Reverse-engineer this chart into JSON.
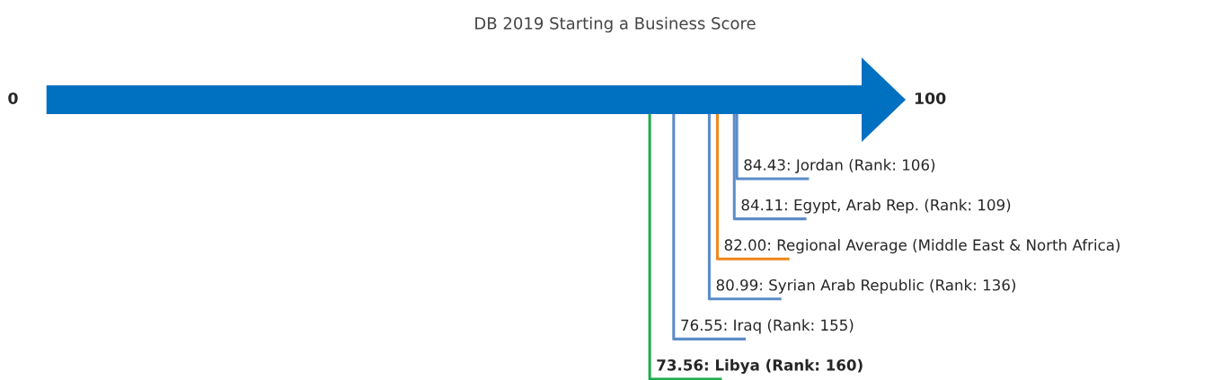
{
  "chart_data": {
    "type": "other",
    "title": "DB 2019 Starting a Business Score",
    "annotations": [
      "0",
      "100"
    ],
    "color": "#0070c0",
    "values": [
      84.43,
      84.11,
      82.0,
      80.99,
      76.55,
      73.56
    ],
    "value_labels": [
      "84.43: Jordan (Rank: 106)",
      "84.11: Egypt, Arab Rep. (Rank: 109)",
      "82.00: Regional Average (Middle East & North Africa)",
      "80.99: Syrian Arab Republic (Rank: 136)",
      "76.55: Iraq (Rank: 155)",
      "73.56: Libya (Rank: 160)"
    ],
    "colors": [
      "#5b8cc8",
      "#5b8cc8",
      "#f0861d",
      "#5b8cc8",
      "#5b8cc8",
      "#1faa4a"
    ]
  }
}
